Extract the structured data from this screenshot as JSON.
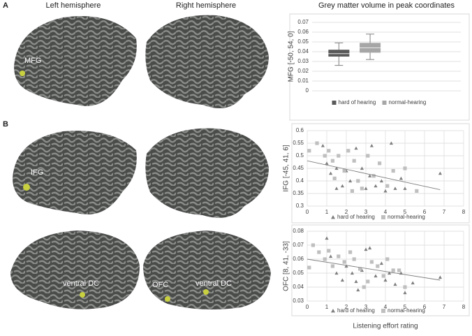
{
  "figure": {
    "panels": [
      "A",
      "B"
    ],
    "column_headers": [
      "Left hemisphere",
      "Right hemisphere"
    ],
    "brain_labels": [
      "MFG",
      "IFG",
      "ventral DC",
      "OFC",
      "ventral DC"
    ]
  },
  "chart_data": [
    {
      "type": "box",
      "title": "Grey matter volume in peak coordinates",
      "ylabel": "MFG [-50, 54, 0]",
      "ylim": [
        0,
        0.07
      ],
      "yticks": [
        0,
        0.01,
        0.02,
        0.03,
        0.04,
        0.05,
        0.06,
        0.07
      ],
      "grid": true,
      "legend": "bottom",
      "series": [
        {
          "name": "hard of hearing",
          "color": "#595959",
          "min": 0.026,
          "q1": 0.035,
          "median": 0.038,
          "q3": 0.042,
          "max": 0.049
        },
        {
          "name": "normal-hearing",
          "color": "#a6a6a6",
          "min": 0.032,
          "q1": 0.039,
          "median": 0.044,
          "q3": 0.049,
          "max": 0.058
        }
      ]
    },
    {
      "type": "scatter",
      "ylabel": "IFG [-45, 41, 6]",
      "xlim": [
        0,
        8
      ],
      "xticks": [
        0,
        1,
        2,
        3,
        4,
        5,
        6,
        7,
        8
      ],
      "ylim": [
        0.3,
        0.6
      ],
      "yticks": [
        0.3,
        0.35,
        0.4,
        0.45,
        0.5,
        0.55,
        0.6
      ],
      "grid": true,
      "legend": "bottom",
      "series": [
        {
          "name": "hard of hearing",
          "color": "#7f7f7f",
          "marker": "triangle",
          "x": [
            0.8,
            1,
            1.2,
            1.5,
            1.8,
            2,
            2.2,
            2.5,
            2.8,
            3,
            3.2,
            3.5,
            3.8,
            4,
            4.3,
            4.5,
            4.8,
            5,
            6.8,
            1.5,
            3.3
          ],
          "y": [
            0.54,
            0.47,
            0.43,
            0.45,
            0.38,
            0.44,
            0.4,
            0.53,
            0.45,
            0.37,
            0.42,
            0.38,
            0.4,
            0.36,
            0.55,
            0.37,
            0.41,
            0.37,
            0.43,
            0.37,
            0.54
          ]
        },
        {
          "name": "normal-hearing",
          "color": "#bfbfbf",
          "marker": "square",
          "x": [
            0.1,
            0.5,
            0.9,
            1.1,
            1.3,
            1.6,
            1.9,
            2.1,
            2.3,
            2.6,
            2.8,
            3.1,
            3.4,
            3.7,
            4.1,
            4.4,
            5,
            5.6,
            2.4,
            1.4
          ],
          "y": [
            0.52,
            0.55,
            0.5,
            0.52,
            0.48,
            0.5,
            0.44,
            0.52,
            0.36,
            0.4,
            0.37,
            0.5,
            0.42,
            0.47,
            0.38,
            0.44,
            0.45,
            0.36,
            0.48,
            0.41
          ]
        }
      ],
      "trendline": {
        "color": "#7f7f7f",
        "x": [
          0,
          6.8
        ],
        "y": [
          0.48,
          0.365
        ]
      }
    },
    {
      "type": "scatter",
      "ylabel": "OFC [8, 41, -33]",
      "xlabel": "Listening effort rating",
      "xlim": [
        0,
        8
      ],
      "xticks": [
        0,
        1,
        2,
        3,
        4,
        5,
        6,
        7,
        8
      ],
      "ylim": [
        0.03,
        0.08
      ],
      "yticks": [
        0.03,
        0.04,
        0.05,
        0.06,
        0.07,
        0.08
      ],
      "grid": true,
      "legend": "bottom",
      "series": [
        {
          "name": "hard of hearing",
          "color": "#7f7f7f",
          "marker": "triangle",
          "x": [
            1,
            1.2,
            1.5,
            1.8,
            2,
            2.3,
            2.5,
            2.8,
            3,
            3.2,
            3.5,
            3.8,
            4,
            4.2,
            4.5,
            4.8,
            5,
            5.4,
            6.8,
            2.6
          ],
          "y": [
            0.075,
            0.062,
            0.05,
            0.045,
            0.055,
            0.05,
            0.044,
            0.052,
            0.067,
            0.068,
            0.048,
            0.057,
            0.045,
            0.05,
            0.042,
            0.05,
            0.036,
            0.043,
            0.047,
            0.038
          ]
        },
        {
          "name": "normal-hearing",
          "color": "#bfbfbf",
          "marker": "square",
          "x": [
            0.1,
            0.3,
            0.6,
            0.9,
            1.1,
            1.3,
            1.6,
            1.9,
            2.2,
            2.4,
            2.7,
            2.9,
            3.3,
            3.6,
            3.9,
            4.1,
            4.4,
            4.7,
            5,
            3.1
          ],
          "y": [
            0.054,
            0.07,
            0.065,
            0.06,
            0.066,
            0.055,
            0.062,
            0.058,
            0.065,
            0.06,
            0.053,
            0.04,
            0.058,
            0.055,
            0.048,
            0.06,
            0.052,
            0.052,
            0.04,
            0.044
          ]
        }
      ],
      "trendline": {
        "color": "#7f7f7f",
        "x": [
          0,
          6.8
        ],
        "y": [
          0.06,
          0.045
        ]
      }
    }
  ]
}
